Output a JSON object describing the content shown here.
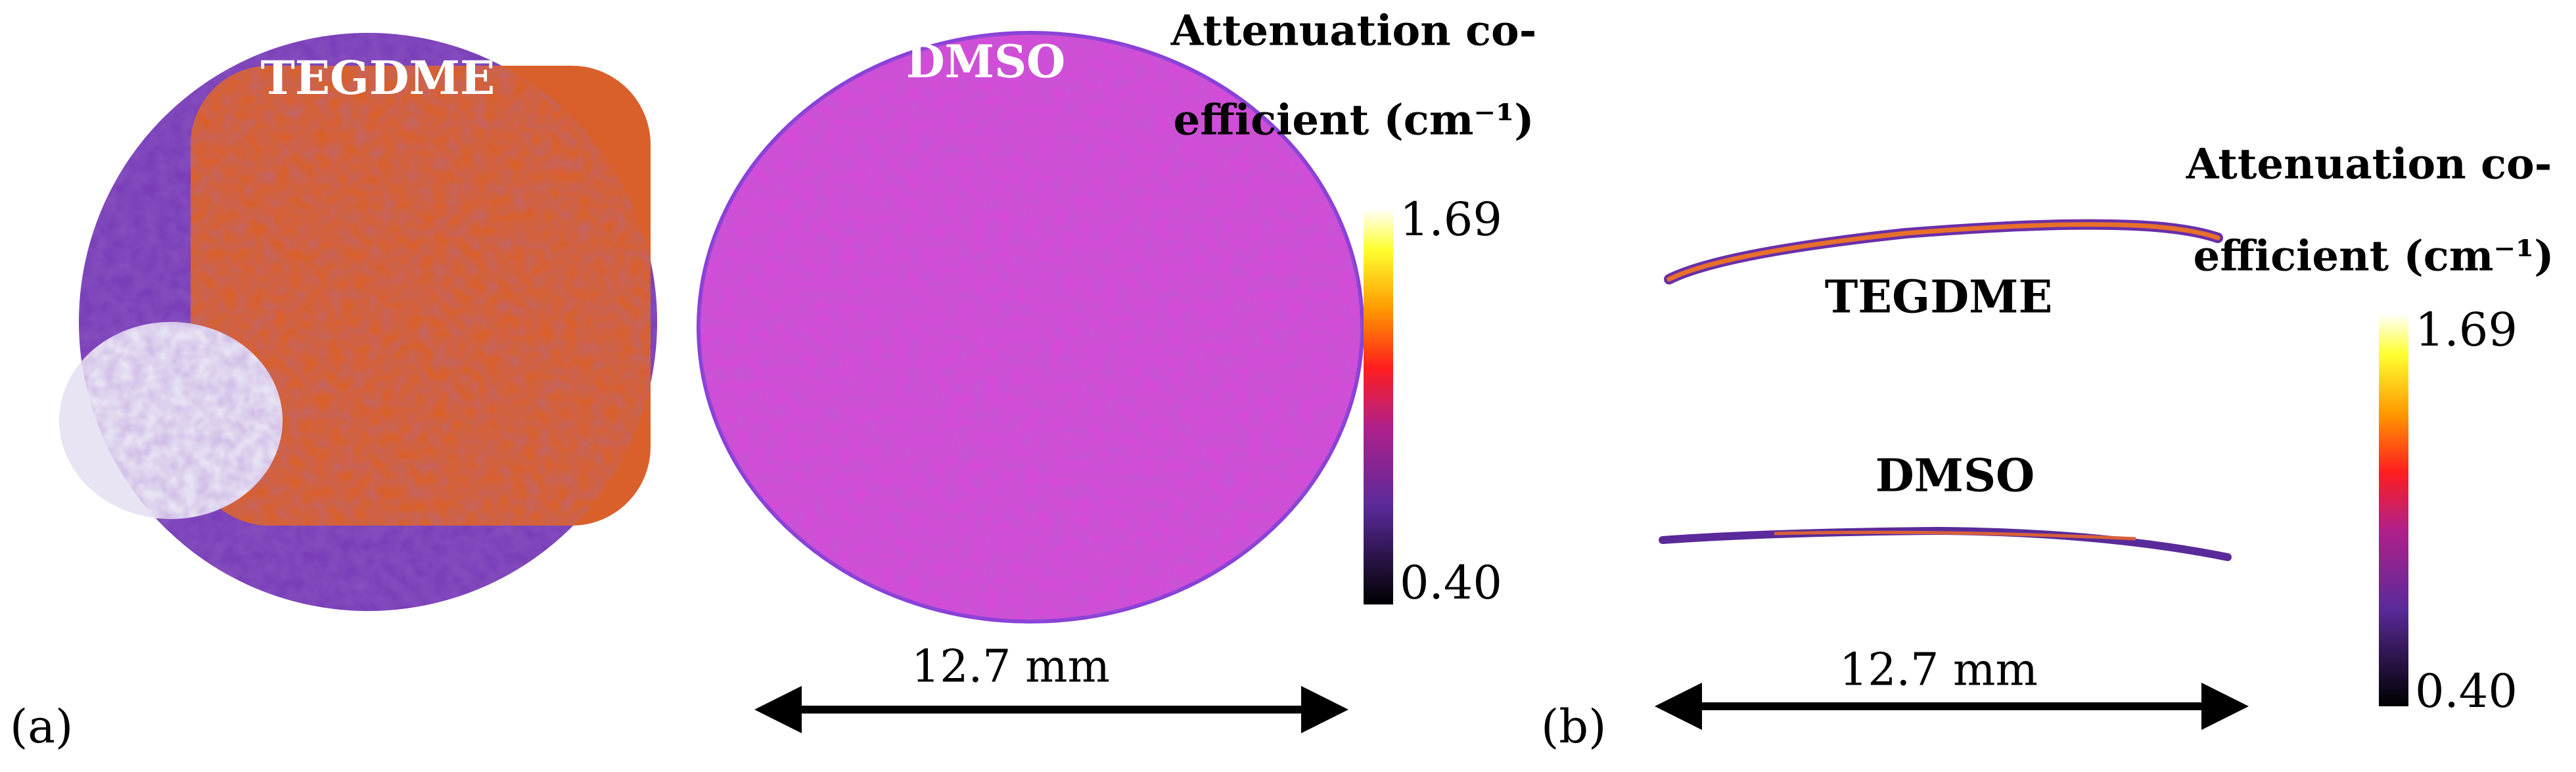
{
  "panel_a": {
    "label": "(a)",
    "samples": [
      "TEGDME",
      "DMSO"
    ],
    "colorbar": {
      "title": [
        "Attenuation co-",
        "efficient (cm⁻¹)"
      ],
      "max": "1.69",
      "min": "0.40"
    },
    "scale": "12.7 mm"
  },
  "panel_b": {
    "label": "(b)",
    "samples": [
      "TEGDME",
      "DMSO"
    ],
    "colorbar": {
      "title": [
        "Attenuation co-",
        "efficient (cm⁻¹)"
      ],
      "max": "1.69",
      "min": "0.40"
    },
    "scale": "12.7 mm"
  }
}
